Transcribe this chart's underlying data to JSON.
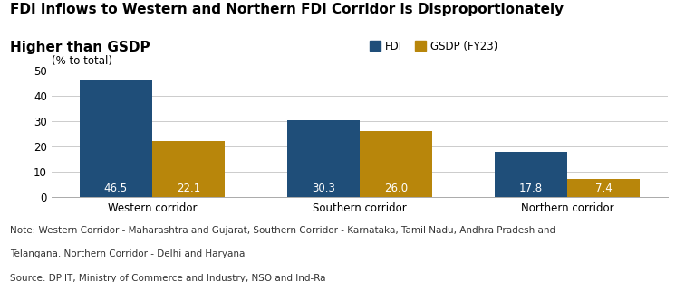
{
  "title_line1": "FDI Inflows to Western and Northern FDI Corridor is Disproportionately",
  "title_line2": "Higher than GSDP",
  "ylabel_text": "(% to total)",
  "categories": [
    "Western corridor",
    "Southern corridor",
    "Northern corridor"
  ],
  "fdi_values": [
    46.5,
    30.3,
    17.8
  ],
  "gsdp_values": [
    22.1,
    26.0,
    7.4
  ],
  "fdi_color": "#1F4E79",
  "gsdp_color": "#B8860B",
  "fdi_label": "FDI",
  "gsdp_label": "GSDP (FY23)",
  "ylim": [
    0,
    50
  ],
  "yticks": [
    0,
    10,
    20,
    30,
    40,
    50
  ],
  "bar_width": 0.35,
  "note_line1": "Note: Western Corridor - Maharashtra and Gujarat, Southern Corridor - Karnataka, Tamil Nadu, Andhra Pradesh and",
  "note_line2": "Telangana. Northern Corridor - Delhi and Haryana",
  "source_line": "Source: DPIIT, Ministry of Commerce and Industry, NSO and Ind-Ra",
  "value_fontsize": 8.5,
  "tick_fontsize": 8.5,
  "title_fontsize": 11,
  "note_fontsize": 7.5,
  "ylabel_fontsize": 8.5,
  "legend_fontsize": 8.5,
  "background_color": "#ffffff"
}
